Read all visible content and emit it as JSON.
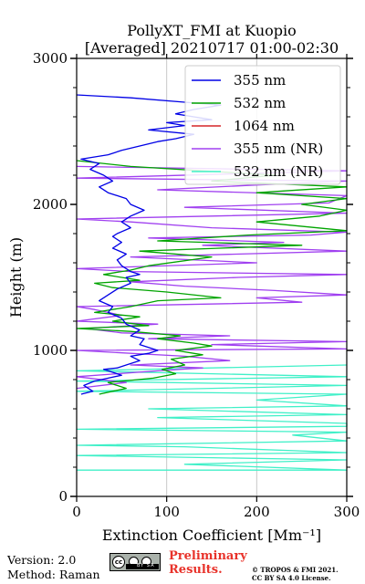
{
  "chart_data": {
    "type": "line",
    "title": "PollyXT_FMI at Kuopio",
    "subtitle": "[Averaged] 20210717 01:00-02:30",
    "xlabel": "Extinction Coefficient [Mm⁻¹]",
    "ylabel": "Height (m)",
    "xlim": [
      0,
      300
    ],
    "ylim": [
      0,
      3000
    ],
    "x_ticks": [
      0,
      100,
      200,
      300
    ],
    "y_ticks": [
      0,
      1000,
      2000,
      3000
    ],
    "grid": "vertical",
    "legend_position": "top-right",
    "series": [
      {
        "name": "355 nm",
        "color": "#0000e6",
        "points": [
          [
            5,
            700
          ],
          [
            18,
            720
          ],
          [
            8,
            760
          ],
          [
            20,
            790
          ],
          [
            35,
            810
          ],
          [
            50,
            830
          ],
          [
            40,
            850
          ],
          [
            30,
            870
          ],
          [
            45,
            880
          ],
          [
            55,
            900
          ],
          [
            70,
            930
          ],
          [
            60,
            960
          ],
          [
            80,
            980
          ],
          [
            90,
            1000
          ],
          [
            70,
            1040
          ],
          [
            75,
            1080
          ],
          [
            60,
            1100
          ],
          [
            70,
            1140
          ],
          [
            55,
            1180
          ],
          [
            50,
            1220
          ],
          [
            35,
            1260
          ],
          [
            40,
            1300
          ],
          [
            25,
            1340
          ],
          [
            35,
            1380
          ],
          [
            45,
            1420
          ],
          [
            60,
            1460
          ],
          [
            55,
            1500
          ],
          [
            70,
            1520
          ],
          [
            60,
            1540
          ],
          [
            50,
            1580
          ],
          [
            45,
            1620
          ],
          [
            55,
            1660
          ],
          [
            40,
            1700
          ],
          [
            50,
            1740
          ],
          [
            40,
            1780
          ],
          [
            45,
            1800
          ],
          [
            60,
            1840
          ],
          [
            50,
            1880
          ],
          [
            60,
            1920
          ],
          [
            75,
            1960
          ],
          [
            60,
            2000
          ],
          [
            55,
            2040
          ],
          [
            35,
            2080
          ],
          [
            25,
            2120
          ],
          [
            40,
            2160
          ],
          [
            30,
            2200
          ],
          [
            15,
            2240
          ],
          [
            25,
            2280
          ],
          [
            5,
            2310
          ],
          [
            35,
            2340
          ],
          [
            50,
            2370
          ],
          [
            70,
            2400
          ],
          [
            90,
            2430
          ],
          [
            110,
            2450
          ],
          [
            130,
            2480
          ],
          [
            80,
            2510
          ],
          [
            120,
            2540
          ],
          [
            100,
            2560
          ],
          [
            150,
            2580
          ],
          [
            110,
            2620
          ],
          [
            130,
            2650
          ],
          [
            160,
            2680
          ],
          [
            120,
            2700
          ],
          [
            60,
            2730
          ],
          [
            0,
            2750
          ]
        ]
      },
      {
        "name": "532 nm",
        "color": "#00a400",
        "points": [
          [
            25,
            700
          ],
          [
            55,
            740
          ],
          [
            35,
            780
          ],
          [
            85,
            810
          ],
          [
            110,
            840
          ],
          [
            95,
            870
          ],
          [
            120,
            900
          ],
          [
            105,
            940
          ],
          [
            140,
            970
          ],
          [
            110,
            1000
          ],
          [
            150,
            1030
          ],
          [
            130,
            1050
          ],
          [
            90,
            1080
          ],
          [
            115,
            1100
          ],
          [
            60,
            1130
          ],
          [
            0,
            1150
          ],
          [
            80,
            1170
          ],
          [
            40,
            1200
          ],
          [
            70,
            1230
          ],
          [
            20,
            1260
          ],
          [
            60,
            1300
          ],
          [
            90,
            1340
          ],
          [
            160,
            1360
          ],
          [
            100,
            1400
          ],
          [
            40,
            1430
          ],
          [
            20,
            1460
          ],
          [
            70,
            1480
          ],
          [
            30,
            1520
          ],
          [
            60,
            1550
          ],
          [
            80,
            1580
          ],
          [
            150,
            1640
          ],
          [
            70,
            1680
          ],
          [
            250,
            1720
          ],
          [
            90,
            1750
          ],
          [
            190,
            1790
          ],
          [
            300,
            1820
          ],
          [
            200,
            1880
          ],
          [
            270,
            1920
          ],
          [
            300,
            1960
          ],
          [
            250,
            2000
          ],
          [
            300,
            2040
          ],
          [
            200,
            2080
          ],
          [
            300,
            2120
          ],
          [
            150,
            2160
          ],
          [
            220,
            2200
          ],
          [
            60,
            2260
          ],
          [
            0,
            2300
          ]
        ]
      },
      {
        "name": "1064 nm",
        "color": "#d62728",
        "points": []
      },
      {
        "name": "355 nm (NR)",
        "color": "#a040f0",
        "points": [
          [
            0,
            740
          ],
          [
            55,
            780
          ],
          [
            0,
            820
          ],
          [
            90,
            860
          ],
          [
            140,
            880
          ],
          [
            60,
            900
          ],
          [
            170,
            930
          ],
          [
            120,
            960
          ],
          [
            0,
            1000
          ],
          [
            300,
            1010
          ],
          [
            150,
            1040
          ],
          [
            300,
            1060
          ],
          [
            80,
            1080
          ],
          [
            170,
            1100
          ],
          [
            50,
            1120
          ],
          [
            10,
            1150
          ],
          [
            90,
            1180
          ],
          [
            0,
            1200
          ],
          [
            50,
            1240
          ],
          [
            20,
            1280
          ],
          [
            0,
            1300
          ],
          [
            250,
            1330
          ],
          [
            200,
            1360
          ],
          [
            300,
            1380
          ],
          [
            220,
            1410
          ],
          [
            120,
            1440
          ],
          [
            60,
            1470
          ],
          [
            180,
            1500
          ],
          [
            300,
            1520
          ],
          [
            60,
            1540
          ],
          [
            0,
            1560
          ],
          [
            200,
            1600
          ],
          [
            60,
            1640
          ],
          [
            300,
            1680
          ],
          [
            140,
            1720
          ],
          [
            230,
            1740
          ],
          [
            80,
            1770
          ],
          [
            260,
            1790
          ],
          [
            300,
            1810
          ],
          [
            150,
            1840
          ],
          [
            60,
            1880
          ],
          [
            0,
            1900
          ],
          [
            300,
            1940
          ],
          [
            120,
            1980
          ],
          [
            280,
            2010
          ],
          [
            300,
            2060
          ],
          [
            90,
            2100
          ],
          [
            190,
            2130
          ],
          [
            300,
            2160
          ],
          [
            0,
            2180
          ],
          [
            300,
            2230
          ],
          [
            0,
            2260
          ]
        ]
      },
      {
        "name": "532 nm (NR)",
        "color": "#40f0c8",
        "points": [
          [
            0,
            180
          ],
          [
            300,
            180
          ],
          [
            120,
            220
          ],
          [
            300,
            250
          ],
          [
            0,
            280
          ],
          [
            300,
            300
          ],
          [
            120,
            340
          ],
          [
            0,
            350
          ],
          [
            300,
            380
          ],
          [
            240,
            420
          ],
          [
            300,
            440
          ],
          [
            0,
            460
          ],
          [
            300,
            480
          ],
          [
            300,
            500
          ],
          [
            90,
            540
          ],
          [
            300,
            560
          ],
          [
            80,
            600
          ],
          [
            300,
            620
          ],
          [
            200,
            660
          ],
          [
            300,
            700
          ],
          [
            0,
            720
          ],
          [
            300,
            760
          ],
          [
            0,
            790
          ],
          [
            300,
            820
          ],
          [
            0,
            860
          ],
          [
            300,
            900
          ]
        ]
      }
    ]
  },
  "footer": {
    "version": "Version: 2.0",
    "method": "Method: Raman",
    "preliminary_line1": "Preliminary",
    "preliminary_line2": "Results.",
    "copyright_line1": "© TROPOS & FMI 2021.",
    "copyright_line2": "CC BY SA 4.0 License.",
    "license_badge": "BY SA"
  }
}
